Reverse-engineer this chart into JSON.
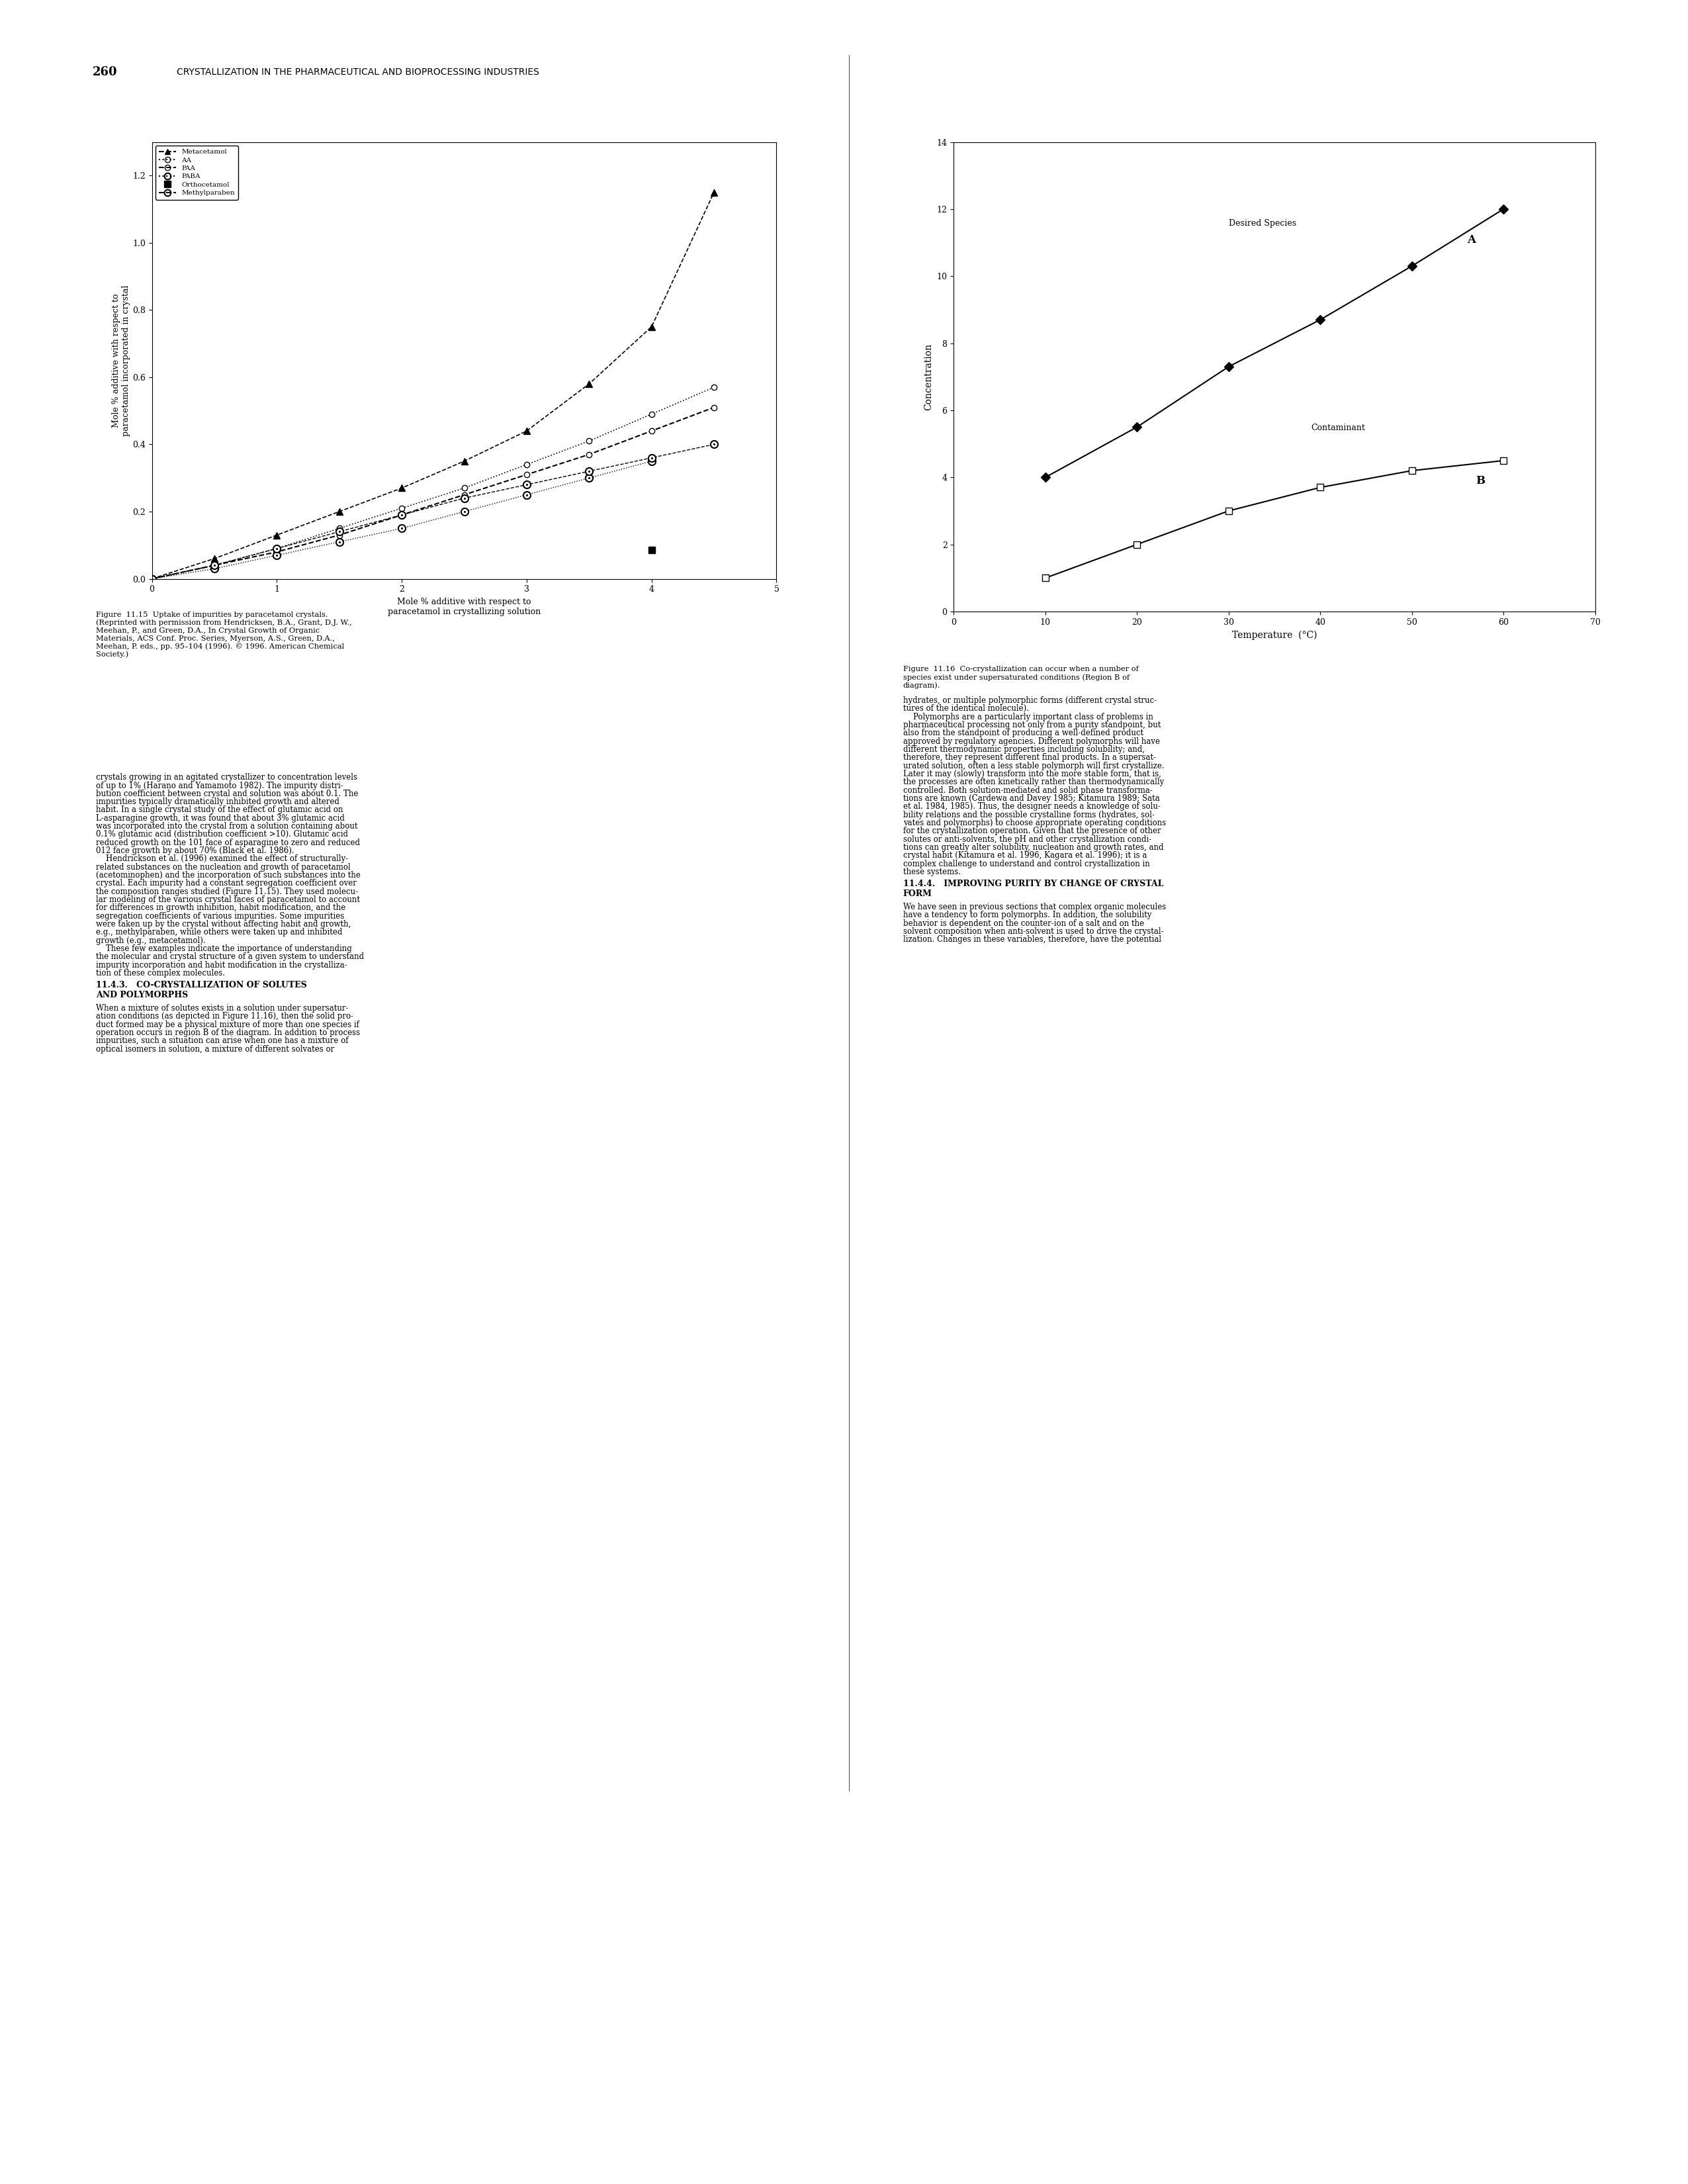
{
  "page_number": "260",
  "header_text": "CRYSTALLIZATION IN THE PHARMACEUTICAL AND BIOPROCESSING INDUSTRIES",
  "chart1": {
    "xlabel": "Mole % additive with respect to\nparacetamol in crystallizing solution",
    "ylabel": "Mole % additive with respect to\nparacetamol incorporated in crystal",
    "xlim": [
      0,
      5
    ],
    "ylim": [
      0,
      1.3
    ],
    "xticks": [
      0,
      1,
      2,
      3,
      4,
      5
    ],
    "yticks": [
      0,
      0.2,
      0.4,
      0.6,
      0.8,
      1.0,
      1.2
    ],
    "meta_x": [
      0,
      0.5,
      1.0,
      1.5,
      2.0,
      2.5,
      3.0,
      3.5,
      4.0,
      4.5
    ],
    "meta_y": [
      0,
      0.06,
      0.13,
      0.2,
      0.27,
      0.35,
      0.44,
      0.58,
      0.75,
      1.15
    ],
    "aa_x": [
      0,
      0.5,
      1.0,
      1.5,
      2.0,
      2.5,
      3.0,
      3.5,
      4.0,
      4.5
    ],
    "aa_y": [
      0,
      0.04,
      0.09,
      0.15,
      0.21,
      0.27,
      0.34,
      0.41,
      0.49,
      0.57
    ],
    "paa_x": [
      0,
      0.5,
      1.0,
      1.5,
      2.0,
      2.5,
      3.0,
      3.5,
      4.0,
      4.5
    ],
    "paa_y": [
      0,
      0.04,
      0.08,
      0.13,
      0.19,
      0.25,
      0.31,
      0.37,
      0.44,
      0.51
    ],
    "paba_x": [
      0,
      0.5,
      1.0,
      1.5,
      2.0,
      2.5,
      3.0,
      3.5,
      4.0
    ],
    "paba_y": [
      0,
      0.03,
      0.07,
      0.11,
      0.15,
      0.2,
      0.25,
      0.3,
      0.35
    ],
    "orth_x": [
      4.0
    ],
    "orth_y": [
      0.085
    ],
    "mp_x": [
      0,
      0.5,
      1.0,
      1.5,
      2.0,
      2.5,
      3.0,
      3.5,
      4.0,
      4.5
    ],
    "mp_y": [
      0,
      0.04,
      0.09,
      0.14,
      0.19,
      0.24,
      0.28,
      0.32,
      0.36,
      0.4
    ]
  },
  "chart2": {
    "xlabel": "Temperature  (°C)",
    "ylabel": "Concentration",
    "xlim": [
      0,
      70
    ],
    "ylim": [
      0,
      14
    ],
    "xticks": [
      0,
      10,
      20,
      30,
      40,
      50,
      60,
      70
    ],
    "yticks": [
      0,
      2,
      4,
      6,
      8,
      10,
      12,
      14
    ],
    "a_x": [
      10,
      20,
      30,
      40,
      50,
      60
    ],
    "a_y": [
      4.0,
      5.5,
      7.3,
      8.7,
      10.3,
      12.0
    ],
    "b_x": [
      10,
      20,
      30,
      40,
      50,
      60
    ],
    "b_y": [
      1.0,
      2.0,
      3.0,
      3.7,
      4.2,
      4.5
    ]
  },
  "fig_cap1_lines": [
    "Figure  11.15  Uptake of impurities by paracetamol crystals.",
    "(Reprinted with permission from Hendricksen, B.A., Grant, D.J. W.,",
    "Meehan, P., and Green, D.A., In Crystal Growth of Organic",
    "Materials, ACS Conf. Proc. Series, Myerson, A.S., Green, D.A.,",
    "Meehan, P. eds., pp. 95–104 (1996). © 1996. American Chemical",
    "Society.)"
  ],
  "fig_cap2_lines": [
    "Figure  11.16  Co-crystallization can occur when a number of",
    "species exist under supersaturated conditions (Region B of",
    "diagram)."
  ],
  "body_left_lines": [
    "crystals growing in an agitated crystallizer to concentration levels",
    "of up to 1% (Harano and Yamamoto 1982). The impurity distri-",
    "bution coefficient between crystal and solution was about 0.1. The",
    "impurities typically dramatically inhibited growth and altered",
    "habit. In a single crystal study of the effect of glutamic acid on",
    "L-asparagine growth, it was found that about 3% glutamic acid",
    "was incorporated into the crystal from a solution containing about",
    "0.1% glutamic acid (distribution coefficient >10). Glutamic acid",
    "reduced growth on the 101 face of asparagine to zero and reduced",
    "012 face growth by about 70% (Black et al. 1986).",
    "    Hendrickson et al. (1996) examined the effect of structurally-",
    "related substances on the nucleation and growth of paracetamol",
    "(acetominophen) and the incorporation of such substances into the",
    "crystal. Each impurity had a constant segregation coefficient over",
    "the composition ranges studied (Figure 11.15). They used molecu-",
    "lar modeling of the various crystal faces of paracetamol to account",
    "for differences in growth inhibition, habit modification, and the",
    "segregation coefficients of various impurities. Some impurities",
    "were taken up by the crystal without affecting habit and growth,",
    "e.g., methylparaben, while others were taken up and inhibited",
    "growth (e.g., metacetamol).",
    "    These few examples indicate the importance of understanding",
    "the molecular and crystal structure of a given system to understand",
    "impurity incorporation and habit modification in the crystalliza-",
    "tion of these complex molecules."
  ],
  "sec_head1_lines": [
    "11.4.3.   CO-CRYSTALLIZATION OF SOLUTES",
    "AND POLYMORPHS"
  ],
  "body_left2_lines": [
    "When a mixture of solutes exists in a solution under supersatur-",
    "ation conditions (as depicted in Figure 11.16), then the solid pro-",
    "duct formed may be a physical mixture of more than one species if",
    "operation occurs in region B of the diagram. In addition to process",
    "impurities, such a situation can arise when one has a mixture of",
    "optical isomers in solution, a mixture of different solvates or"
  ],
  "body_right1_lines": [
    "hydrates, or multiple polymorphic forms (different crystal struc-",
    "tures of the identical molecule).",
    "    Polymorphs are a particularly important class of problems in",
    "pharmaceutical processing not only from a purity standpoint, but",
    "also from the standpoint of producing a well-defined product",
    "approved by regulatory agencies. Different polymorphs will have",
    "different thermodynamic properties including solubility; and,",
    "therefore, they represent different final products. In a supersat-",
    "urated solution, often a less stable polymorph will first crystallize.",
    "Later it may (slowly) transform into the more stable form, that is,",
    "the processes are often kinetically rather than thermodynamically",
    "controlled. Both solution-mediated and solid phase transforma-",
    "tions are known (Cardewa and Davey 1985; Kitamura 1989; Sata",
    "et al. 1984, 1985). Thus, the designer needs a knowledge of solu-",
    "bility relations and the possible crystalline forms (hydrates, sol-",
    "vates and polymorphs) to choose appropriate operating conditions",
    "for the crystallization operation. Given that the presence of other",
    "solutes or anti-solvents, the pH and other crystallization condi-",
    "tions can greatly alter solubility, nucleation and growth rates, and",
    "crystal habit (Kitamura et al. 1996, Kagara et al. 1996); it is a",
    "complex challenge to understand and control crystallization in",
    "these systems."
  ],
  "sec_head2_lines": [
    "11.4.4.   IMPROVING PURITY BY CHANGE OF CRYSTAL",
    "FORM"
  ],
  "body_right2_lines": [
    "We have seen in previous sections that complex organic molecules",
    "have a tendency to form polymorphs. In addition, the solubility",
    "behavior is dependent on the counter-ion of a salt and on the",
    "solvent composition when anti-solvent is used to drive the crystal-",
    "lization. Changes in these variables, therefore, have the potential"
  ]
}
